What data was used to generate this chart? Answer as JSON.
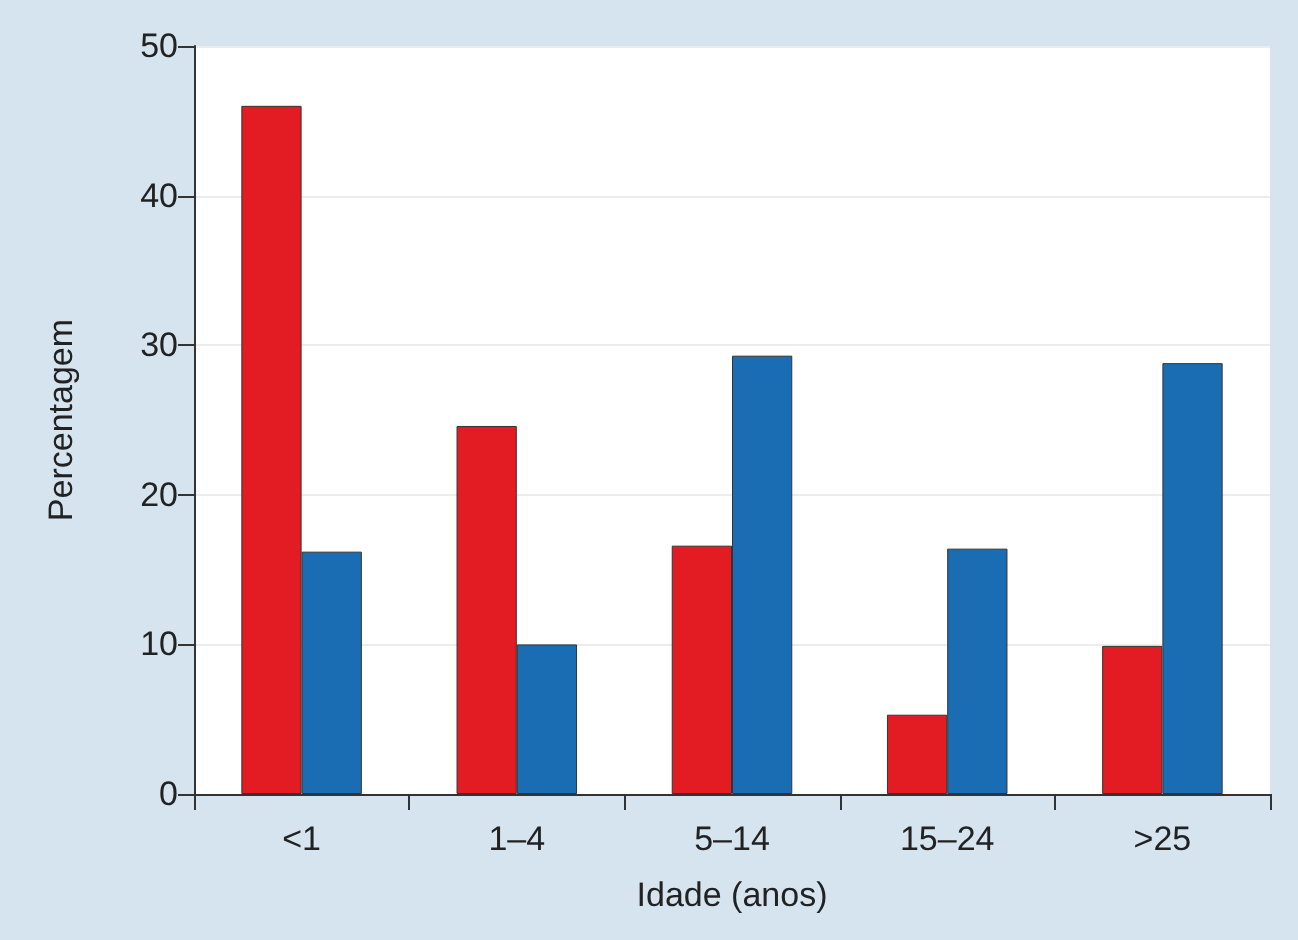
{
  "chart_data": {
    "type": "bar",
    "xlabel": "Idade (anos)",
    "ylabel": "Percentagem",
    "categories": [
      "<1",
      "1–4",
      "5–14",
      "15–24",
      ">25"
    ],
    "series": [
      {
        "color": "#e31b23",
        "values": [
          46.0,
          24.6,
          16.6,
          5.3,
          9.9
        ]
      },
      {
        "color": "#1a6db3",
        "values": [
          16.2,
          10.0,
          29.3,
          16.4,
          28.8
        ]
      }
    ],
    "ylim": [
      0,
      50
    ],
    "yticks": [
      0,
      10,
      20,
      30,
      40,
      50
    ],
    "grid": "y"
  }
}
